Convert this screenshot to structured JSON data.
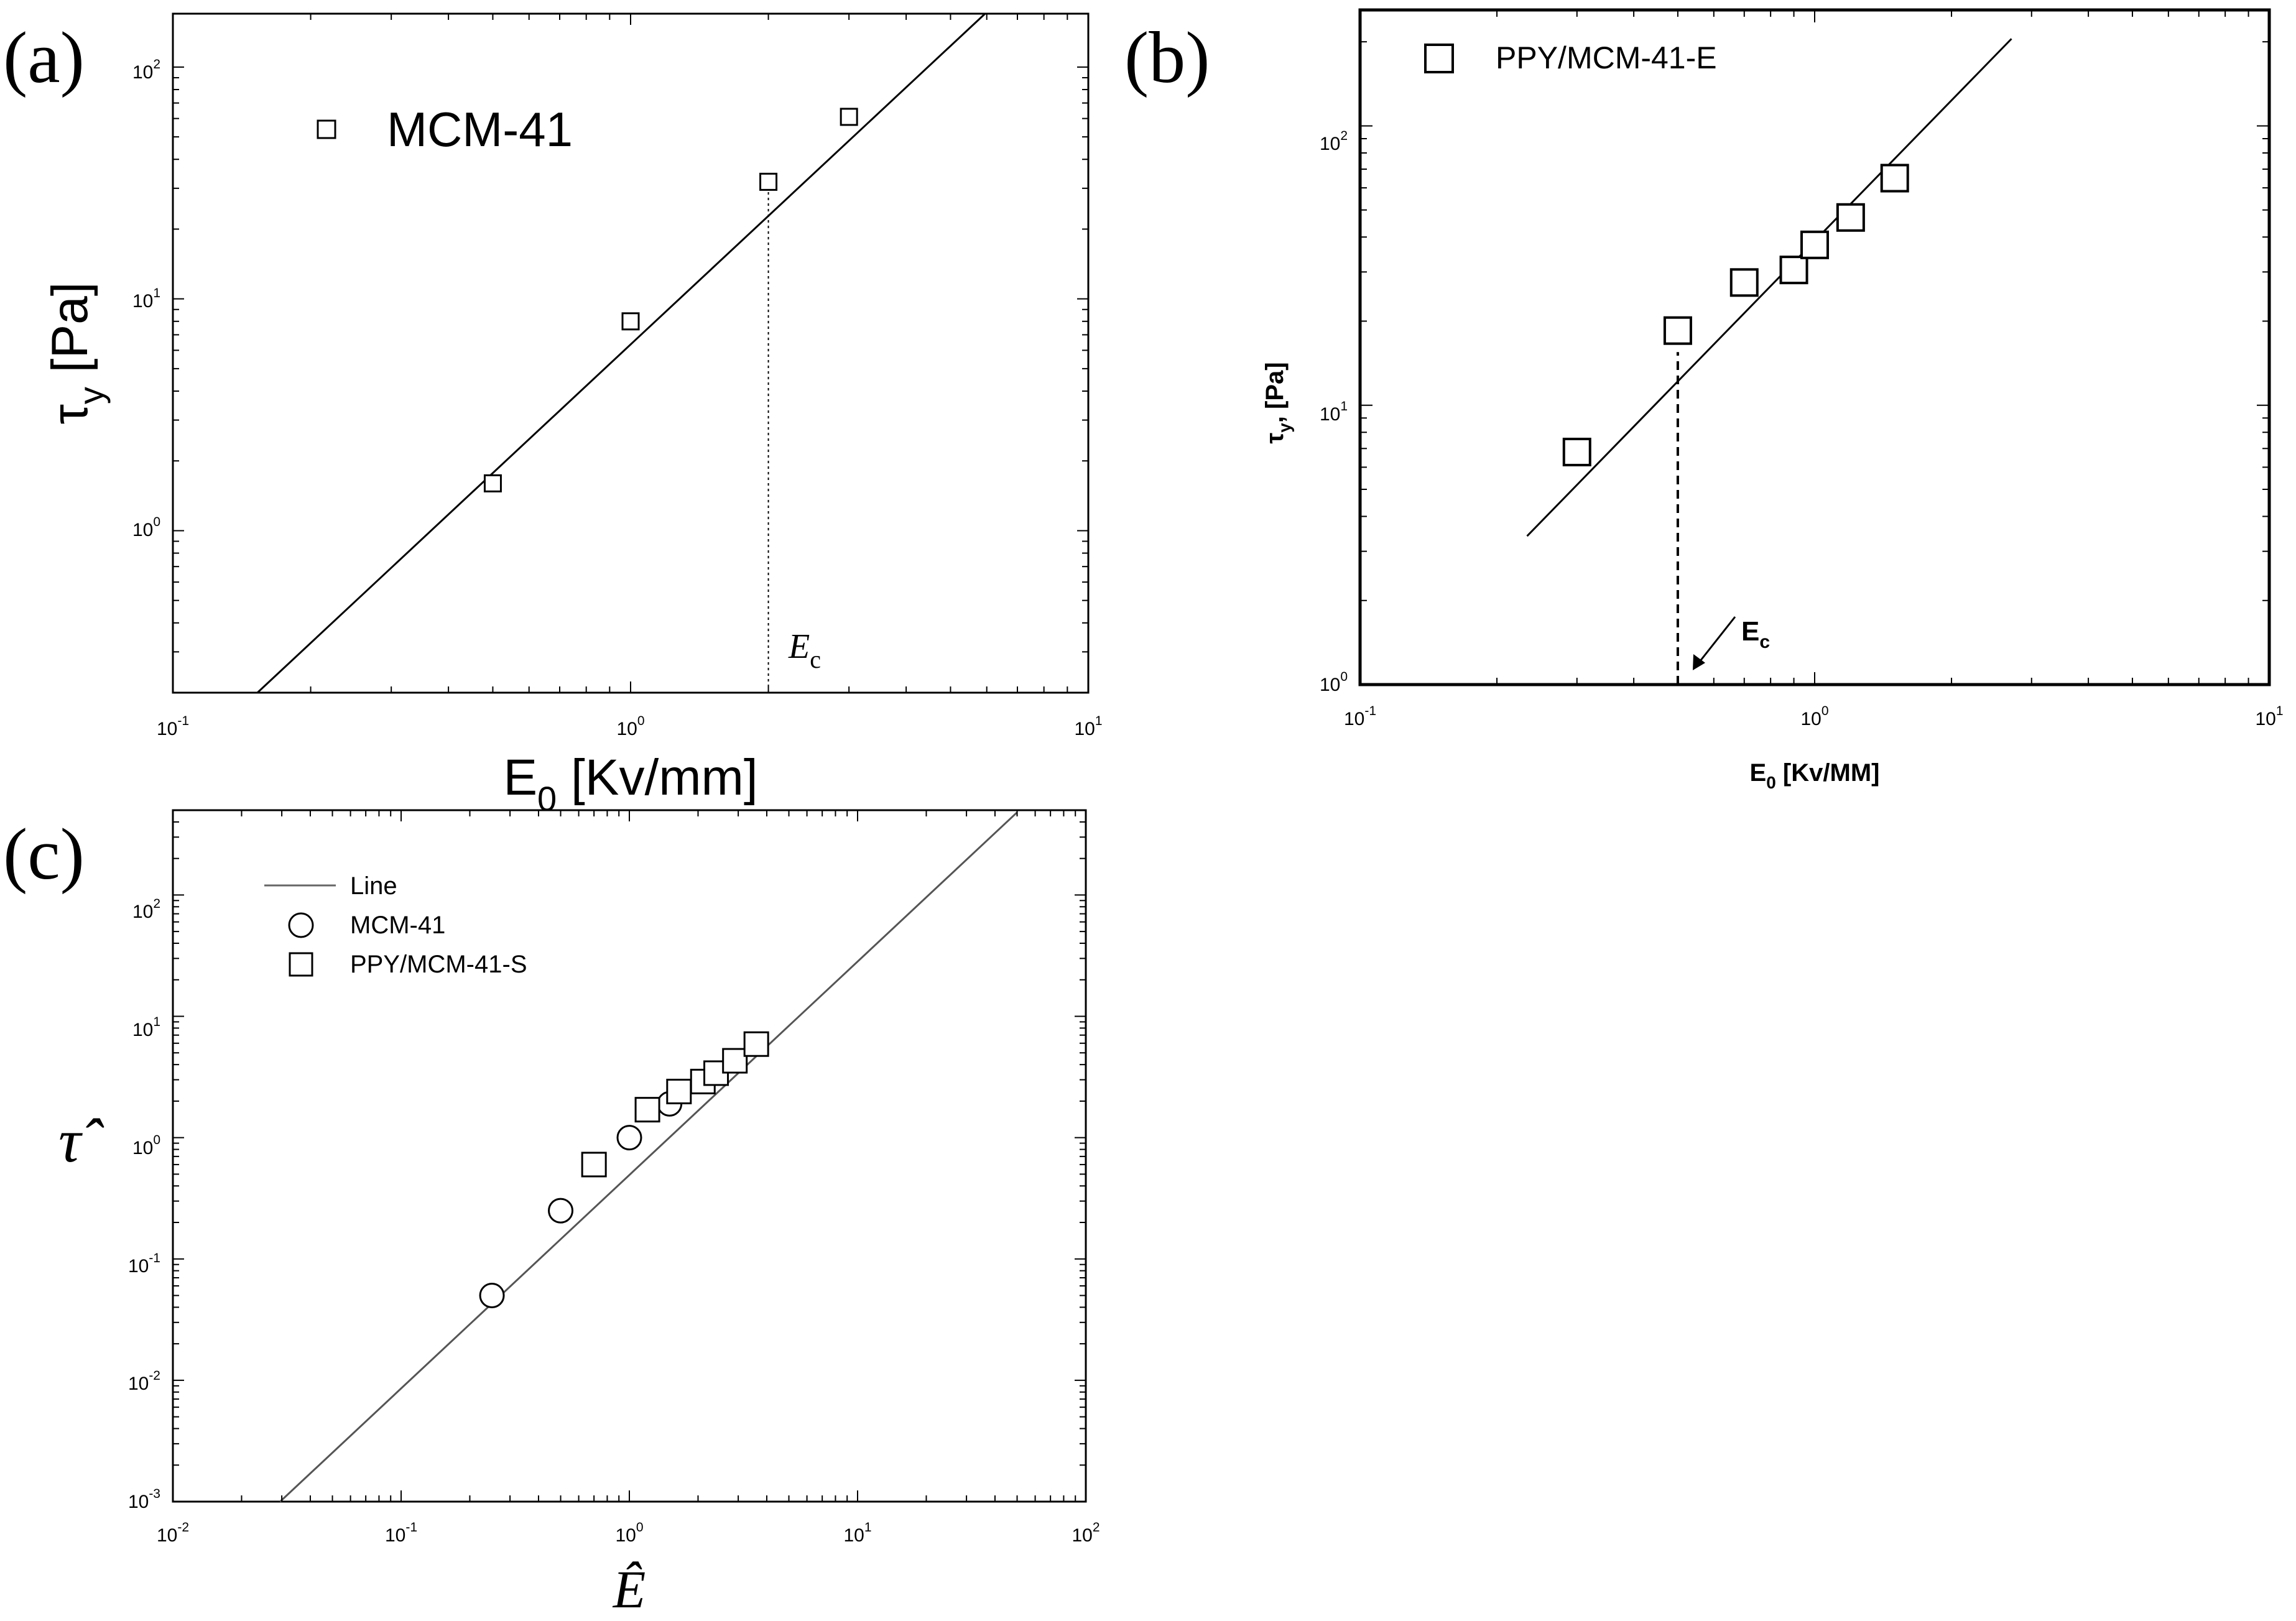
{
  "panels": [
    {
      "id": "a",
      "panel_label": "(a)",
      "x_label": {
        "main": "E",
        "sub": "0",
        "unit": " [Kv/mm]"
      },
      "y_label": {
        "main": "τ",
        "sub": "y",
        "unit": " [Pa]"
      },
      "x_ticks": [
        {
          "base": "10",
          "exp": "-1"
        },
        {
          "base": "10",
          "exp": "0"
        },
        {
          "base": "10",
          "exp": "1"
        }
      ],
      "y_ticks": [
        {
          "base": "10",
          "exp": "0"
        },
        {
          "base": "10",
          "exp": "1"
        },
        {
          "base": "10",
          "exp": "2"
        }
      ],
      "legend": [
        {
          "marker": "square",
          "label": "MCM-41"
        }
      ],
      "annotation": {
        "main": "E",
        "sub": "c"
      }
    },
    {
      "id": "b",
      "panel_label": "(b)",
      "x_label": {
        "main": "E",
        "sub": "0",
        "unit": " [Kv/MM]"
      },
      "y_label": {
        "main": "τ",
        "sub": "y",
        "unit": ", [Pa]"
      },
      "x_ticks": [
        {
          "base": "10",
          "exp": "-1"
        },
        {
          "base": "10",
          "exp": "0"
        },
        {
          "base": "10",
          "exp": "1"
        }
      ],
      "y_ticks": [
        {
          "base": "10",
          "exp": "0"
        },
        {
          "base": "10",
          "exp": "1"
        },
        {
          "base": "10",
          "exp": "2"
        }
      ],
      "legend": [
        {
          "marker": "square",
          "label": "PPY/MCM-41-E"
        }
      ],
      "annotation": {
        "main": "E",
        "sub": "c"
      }
    },
    {
      "id": "c",
      "panel_label": "(c)",
      "x_label": {
        "main": "Ê",
        "sub": "",
        "unit": ""
      },
      "y_label": {
        "main": "τ̂",
        "sub": "",
        "unit": ""
      },
      "x_ticks": [
        {
          "base": "10",
          "exp": "-2"
        },
        {
          "base": "10",
          "exp": "-1"
        },
        {
          "base": "10",
          "exp": "0"
        },
        {
          "base": "10",
          "exp": "1"
        },
        {
          "base": "10",
          "exp": "2"
        }
      ],
      "y_ticks": [
        {
          "base": "10",
          "exp": "-3"
        },
        {
          "base": "10",
          "exp": "-2"
        },
        {
          "base": "10",
          "exp": "-1"
        },
        {
          "base": "10",
          "exp": "0"
        },
        {
          "base": "10",
          "exp": "1"
        },
        {
          "base": "10",
          "exp": "2"
        }
      ],
      "legend": [
        {
          "marker": "line",
          "label": "Line"
        },
        {
          "marker": "circle",
          "label": "MCM-41"
        },
        {
          "marker": "square",
          "label": "PPY/MCM-41-S"
        }
      ]
    }
  ],
  "chart_data": [
    {
      "type": "scatter",
      "panel": "a",
      "x_scale": "log",
      "y_scale": "log",
      "xlim": [
        0.1,
        10
      ],
      "ylim": [
        0.2,
        170
      ],
      "series": [
        {
          "name": "MCM-41",
          "marker": "square",
          "x": [
            0.5,
            1.0,
            2.0,
            3.0
          ],
          "y": [
            1.6,
            8.0,
            32,
            61
          ]
        },
        {
          "marker": "line",
          "x": [
            0.153,
            5.95
          ],
          "y": [
            0.2,
            170
          ]
        }
      ],
      "critical_marker": {
        "x": 2.0,
        "y": 32,
        "style": "dotted"
      }
    },
    {
      "type": "scatter",
      "panel": "b",
      "x_scale": "log",
      "y_scale": "log",
      "xlim": [
        0.1,
        10
      ],
      "ylim": [
        1,
        260
      ],
      "series": [
        {
          "name": "PPY/MCM-41-E",
          "marker": "square",
          "x": [
            0.3,
            0.5,
            0.7,
            0.9,
            1.0,
            1.2,
            1.5
          ],
          "y": [
            6.8,
            18.5,
            27.5,
            30.5,
            37.5,
            47,
            65
          ]
        },
        {
          "marker": "line",
          "x": [
            0.233,
            2.71
          ],
          "y": [
            3.4,
            205
          ]
        }
      ],
      "critical_marker": {
        "x": 0.5,
        "y": 15.5,
        "style": "dashed"
      }
    },
    {
      "type": "scatter",
      "panel": "c",
      "x_scale": "log",
      "y_scale": "log",
      "xlim": [
        0.01,
        100
      ],
      "ylim": [
        0.001,
        500
      ],
      "series": [
        {
          "name": "Line",
          "marker": "line",
          "x": [
            0.0295,
            50
          ],
          "y": [
            0.001,
            480
          ]
        },
        {
          "name": "MCM-41",
          "marker": "circle",
          "x": [
            0.25,
            0.5,
            1.0,
            1.5
          ],
          "y": [
            0.05,
            0.25,
            1.0,
            1.9
          ]
        },
        {
          "name": "PPY/MCM-41-S",
          "marker": "square",
          "x": [
            0.7,
            1.2,
            1.65,
            2.1,
            2.4,
            2.9,
            3.6
          ],
          "y": [
            0.6,
            1.7,
            2.4,
            2.9,
            3.4,
            4.3,
            5.9
          ]
        }
      ]
    }
  ]
}
